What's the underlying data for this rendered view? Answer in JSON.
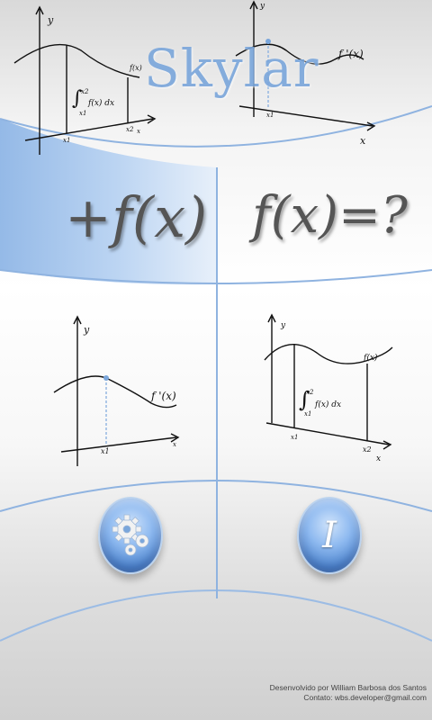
{
  "app": {
    "title": "Skylar"
  },
  "tiles": {
    "integral": {
      "label": "+f(x)"
    },
    "solve": {
      "label": "f(x)=?"
    }
  },
  "graphs": {
    "top_left": {
      "y": "y",
      "fx": "f(x)",
      "integral": "f(x) dx",
      "lower": "x1",
      "upper": "x2",
      "x1": "x1",
      "x2": "x2",
      "x": "x"
    },
    "top_right": {
      "y": "y",
      "fprime": "f '(x)",
      "x1": "x1",
      "x": "x"
    },
    "mid_left": {
      "y": "y",
      "fprime": "f '(x)",
      "x1": "x1",
      "x": "x"
    },
    "mid_right": {
      "y": "y",
      "fx": "f(x)",
      "integral": "f(x) dx",
      "lower": "x1",
      "upper": "x2",
      "x1": "x1",
      "x2": "x2",
      "x": "x"
    }
  },
  "buttons": {
    "settings": {
      "icon": "gears-icon"
    },
    "info": {
      "icon": "info-icon",
      "glyph": "I"
    }
  },
  "footer": {
    "developer": "Desenvolvido por William Barbosa dos Santos",
    "contact": "Contato: wbs.developer@gmail.com"
  },
  "colors": {
    "accent": "#7aa6db",
    "orb": "#5a8fd6"
  }
}
